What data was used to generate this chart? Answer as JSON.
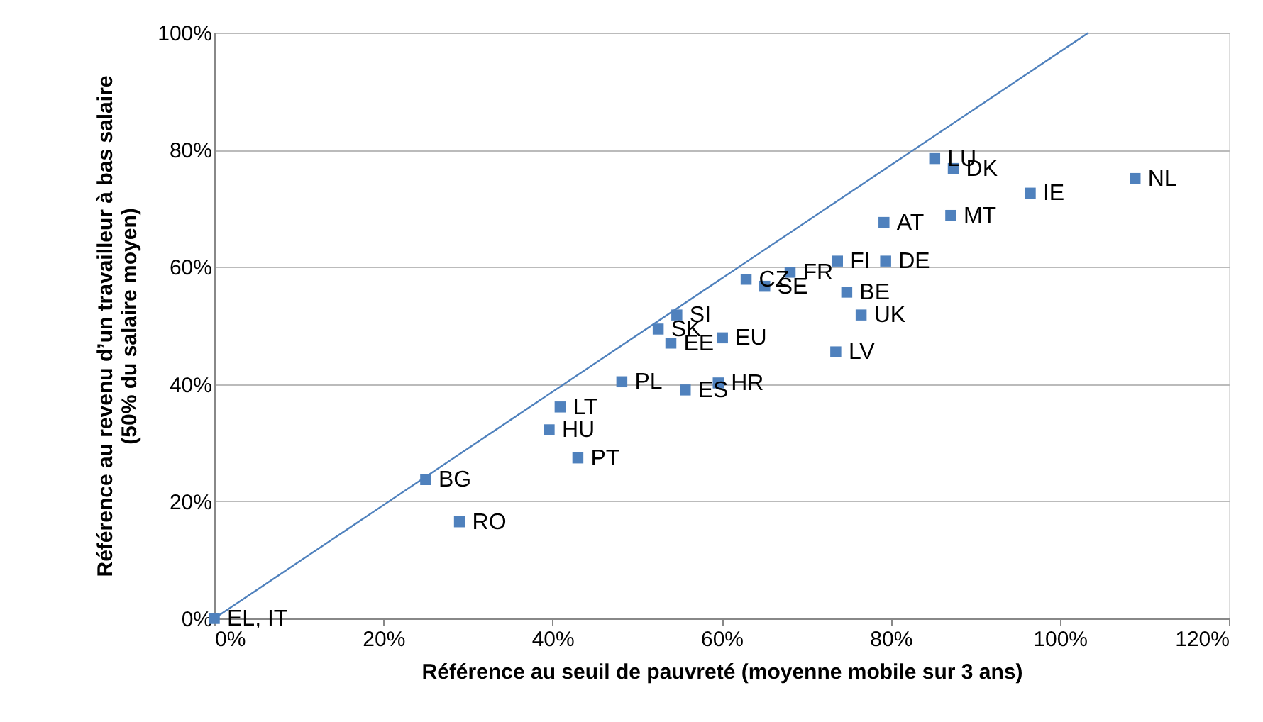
{
  "chart_data": {
    "type": "scatter",
    "xlabel": "Référence au seuil de pauvreté (moyenne mobile sur 3 ans)",
    "ylabel": "Référence au revenu d’un travailleur à bas salaire\n(50% du salaire moyen)",
    "xlim": [
      0,
      120
    ],
    "ylim": [
      0,
      100
    ],
    "xticks": [
      {
        "value": 0,
        "label": "0%"
      },
      {
        "value": 20,
        "label": "20%"
      },
      {
        "value": 40,
        "label": "40%"
      },
      {
        "value": 60,
        "label": "60%"
      },
      {
        "value": 80,
        "label": "80%"
      },
      {
        "value": 100,
        "label": "100%"
      },
      {
        "value": 120,
        "label": "120%"
      }
    ],
    "yticks": [
      {
        "value": 0,
        "label": "0%"
      },
      {
        "value": 20,
        "label": "20%"
      },
      {
        "value": 40,
        "label": "40%"
      },
      {
        "value": 60,
        "label": "60%"
      },
      {
        "value": 80,
        "label": "80%"
      },
      {
        "value": 100,
        "label": "100%"
      }
    ],
    "grid": "y",
    "marker": "square",
    "series": [
      {
        "color": "#4f81bd",
        "x": [
          0,
          25.0,
          29.0,
          40.9,
          39.6,
          43.0,
          48.2,
          55.7,
          59.6,
          54.0,
          52.5,
          54.7,
          60.1,
          62.9,
          65.1,
          68.1,
          73.7,
          79.4,
          74.8,
          76.5,
          73.5,
          85.2,
          87.4,
          96.5,
          108.9,
          79.2,
          87.1
        ],
        "values": [
          0,
          23.7,
          16.5,
          36.1,
          32.2,
          27.4,
          40.4,
          39.0,
          40.2,
          47.0,
          49.4,
          51.8,
          47.9,
          57.9,
          56.7,
          59.1,
          61.0,
          61.0,
          55.7,
          51.8,
          45.5,
          78.5,
          76.8,
          72.6,
          75.1,
          67.6,
          68.8
        ]
      },
      {
        "type": "line",
        "color": "#4f81bd",
        "line_style": "solid",
        "marker": "none",
        "x": [
          0,
          103.4
        ],
        "values": [
          0,
          100
        ]
      }
    ],
    "annotations": [
      {
        "text": "EL, IT",
        "x": 0,
        "y": 0
      },
      {
        "text": "BG",
        "x": 25.0,
        "y": 23.7
      },
      {
        "text": "RO",
        "x": 29.0,
        "y": 16.5
      },
      {
        "text": "LT",
        "x": 40.9,
        "y": 36.1
      },
      {
        "text": "HU",
        "x": 39.6,
        "y": 32.2
      },
      {
        "text": "PT",
        "x": 43.0,
        "y": 27.4
      },
      {
        "text": "PL",
        "x": 48.2,
        "y": 40.4
      },
      {
        "text": "ES",
        "x": 55.7,
        "y": 39.0
      },
      {
        "text": "HR",
        "x": 59.6,
        "y": 40.2
      },
      {
        "text": "EE",
        "x": 54.0,
        "y": 47.0
      },
      {
        "text": "SK",
        "x": 52.5,
        "y": 49.4
      },
      {
        "text": "SI",
        "x": 54.7,
        "y": 51.8
      },
      {
        "text": "EU",
        "x": 60.1,
        "y": 47.9
      },
      {
        "text": "CZ",
        "x": 62.9,
        "y": 57.9
      },
      {
        "text": "SE",
        "x": 65.1,
        "y": 56.7
      },
      {
        "text": "FR",
        "x": 68.1,
        "y": 59.1
      },
      {
        "text": "FI",
        "x": 73.7,
        "y": 61.0
      },
      {
        "text": "DE",
        "x": 79.4,
        "y": 61.0
      },
      {
        "text": "BE",
        "x": 74.8,
        "y": 55.7
      },
      {
        "text": "UK",
        "x": 76.5,
        "y": 51.8
      },
      {
        "text": "LV",
        "x": 73.5,
        "y": 45.5
      },
      {
        "text": "LU",
        "x": 85.2,
        "y": 78.5
      },
      {
        "text": "DK",
        "x": 87.4,
        "y": 76.8
      },
      {
        "text": "IE",
        "x": 96.5,
        "y": 72.6
      },
      {
        "text": "NL",
        "x": 108.9,
        "y": 75.1
      },
      {
        "text": "AT",
        "x": 79.2,
        "y": 67.6
      },
      {
        "text": "MT",
        "x": 87.1,
        "y": 68.8
      }
    ]
  }
}
